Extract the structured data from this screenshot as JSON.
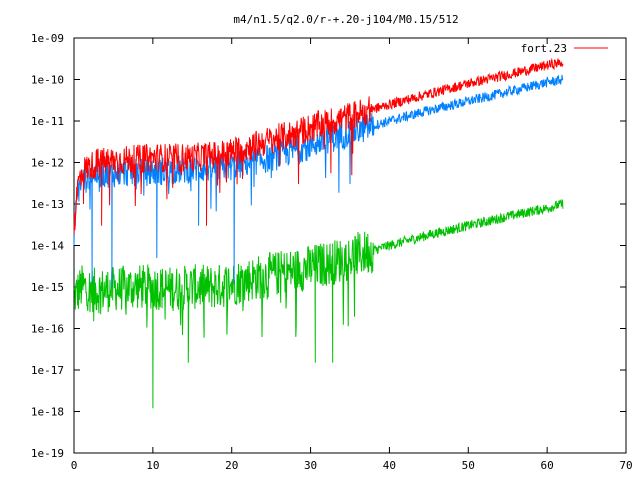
{
  "chart_data": {
    "type": "line",
    "title": "m4/n1.5/q2.0/r-+.20-j104/M0.15/512",
    "xlabel": "",
    "ylabel": "",
    "xlim": [
      0,
      70
    ],
    "ylim": [
      1e-19,
      1e-09
    ],
    "y_scale": "log",
    "x_ticks": [
      "0",
      "10",
      "20",
      "30",
      "40",
      "50",
      "60",
      "70"
    ],
    "y_ticks": [
      "1e-19",
      "1e-18",
      "1e-17",
      "1e-16",
      "1e-15",
      "1e-14",
      "1e-13",
      "1e-12",
      "1e-11",
      "1e-10",
      "1e-09"
    ],
    "grid": false,
    "legend_position": "top-right",
    "series": [
      {
        "name": "fort.23",
        "color": "#ff0000",
        "x": [
          0,
          0.5,
          1,
          2,
          3,
          5,
          8,
          10,
          12,
          15,
          18,
          20,
          22,
          25,
          28,
          30,
          33,
          36,
          40,
          45,
          50,
          55,
          60,
          62
        ],
        "y": [
          3e-14,
          3e-13,
          6e-13,
          8e-13,
          1e-12,
          1.1e-12,
          1.2e-12,
          1.3e-12,
          1.3e-12,
          1.3e-12,
          1.5e-12,
          1.8e-12,
          2.3e-12,
          3.5e-12,
          5e-12,
          7e-12,
          1e-11,
          1.5e-11,
          2.5e-11,
          4.5e-11,
          8e-11,
          1.3e-10,
          2.2e-10,
          2.6e-10
        ]
      },
      {
        "name": "",
        "color": "#0080ff",
        "x": [
          0,
          0.5,
          1,
          2,
          3,
          5,
          8,
          10,
          12,
          15,
          18,
          20,
          22,
          25,
          28,
          30,
          33,
          36,
          40,
          45,
          50,
          55,
          60,
          62
        ],
        "y": [
          2e-14,
          2e-13,
          4e-13,
          5e-13,
          5.5e-13,
          5.5e-13,
          6e-13,
          6e-13,
          6.5e-13,
          7e-13,
          7.5e-13,
          8e-13,
          1e-12,
          1.3e-12,
          2e-12,
          2.7e-12,
          4e-12,
          6e-12,
          1e-11,
          1.8e-11,
          3e-11,
          5e-11,
          8.5e-11,
          1e-10
        ]
      },
      {
        "name": "",
        "color": "#00c000",
        "x": [
          0,
          1,
          3,
          5,
          8,
          10,
          12,
          15,
          18,
          20,
          22,
          25,
          28,
          30,
          33,
          36,
          40,
          45,
          50,
          55,
          60,
          62
        ],
        "y": [
          6e-16,
          1e-15,
          8e-16,
          9e-16,
          1e-15,
          1e-15,
          9e-16,
          1e-15,
          1e-15,
          1.2e-15,
          1.5e-15,
          2e-15,
          2.5e-15,
          3e-15,
          4e-15,
          6e-15,
          1e-14,
          1.8e-14,
          3e-14,
          5e-14,
          8e-14,
          1e-13
        ]
      }
    ],
    "dips": [
      {
        "series": 1,
        "x": 2.3,
        "y": 1.2e-15
      },
      {
        "series": 1,
        "x": 4.8,
        "y": 1e-15
      },
      {
        "series": 1,
        "x": 10.5,
        "y": 5e-15
      },
      {
        "series": 1,
        "x": 20.3,
        "y": 1.2e-15
      },
      {
        "series": 1,
        "x": 15.8,
        "y": 3e-14
      },
      {
        "series": 0,
        "x": 1.2,
        "y": 1e-13
      },
      {
        "series": 0,
        "x": 3.5,
        "y": 3e-14
      },
      {
        "series": 0,
        "x": 16.8,
        "y": 3e-14
      },
      {
        "series": 2,
        "x": 10,
        "y": 1.2e-18
      },
      {
        "series": 2,
        "x": 14.5,
        "y": 1.5e-17
      },
      {
        "series": 2,
        "x": 30.6,
        "y": 1.5e-17
      },
      {
        "series": 2,
        "x": 32.8,
        "y": 1.5e-17
      },
      {
        "series": 2,
        "x": 2.5,
        "y": 1.5e-16
      },
      {
        "series": 2,
        "x": 16.5,
        "y": 6e-17
      },
      {
        "series": 2,
        "x": 24.5,
        "y": 5e-16
      }
    ]
  }
}
